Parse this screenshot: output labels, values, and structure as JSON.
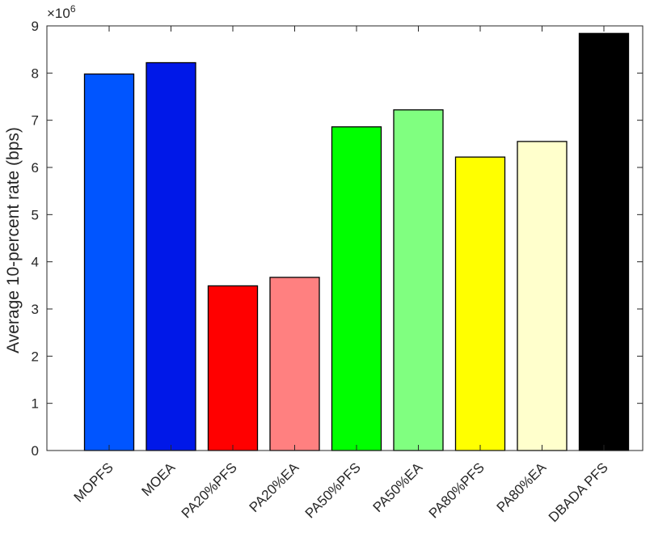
{
  "chart_data": {
    "type": "bar",
    "title": "",
    "xlabel": "",
    "ylabel": "Average 10-percent rate (bps)",
    "y_exponent_base": "×10",
    "y_exponent_power": "6",
    "ylim": [
      0,
      9
    ],
    "yticks": [
      "0",
      "1",
      "2",
      "3",
      "4",
      "5",
      "6",
      "7",
      "8",
      "9"
    ],
    "categories": [
      "MOPFS",
      "MOEA",
      "PA20%PFS",
      "PA20%EA",
      "PA50%PFS",
      "PA50%EA",
      "PA80%PFS",
      "PA80%EA",
      "DBADA PFS"
    ],
    "values": [
      7.98,
      8.22,
      3.49,
      3.67,
      6.86,
      7.22,
      6.22,
      6.55,
      8.84
    ],
    "colors": [
      "#0055ff",
      "#0018e8",
      "#ff0000",
      "#ff8080",
      "#00ff00",
      "#80ff80",
      "#ffff00",
      "#ffffcc",
      "#000000"
    ],
    "grid": false,
    "legend": "none"
  }
}
